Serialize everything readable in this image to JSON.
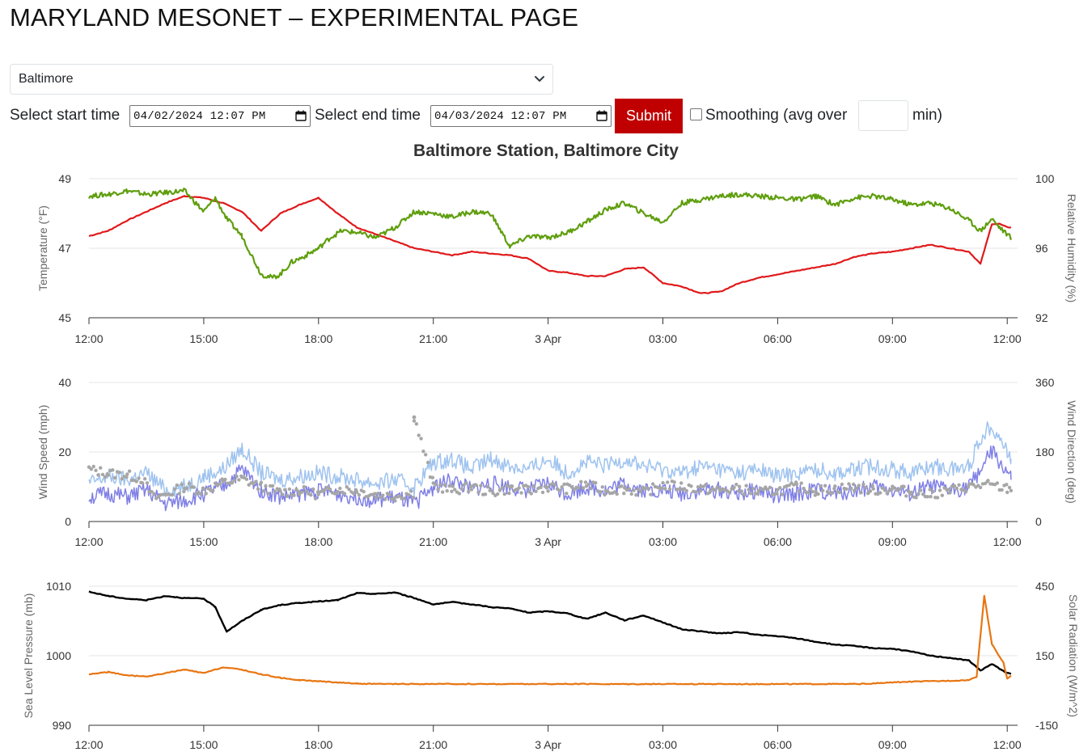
{
  "page": {
    "title": "MARYLAND MESONET – EXPERIMENTAL PAGE"
  },
  "station_select": {
    "selected": "Baltimore"
  },
  "controls": {
    "start_label": "Select start time",
    "start_value": "04/02/2024 12:07 PM",
    "end_label": "Select end time",
    "end_value": "04/03/2024 12:07 PM",
    "submit_label": "Submit",
    "smoothing_label": "Smoothing (avg over",
    "smoothing_value": "",
    "smoothing_unit": "min)"
  },
  "icons": {
    "select_arrow": "chevron-down-icon",
    "calendar": "calendar-icon",
    "checkbox": "checkbox-icon"
  },
  "colors": {
    "temperature": "#e0191b",
    "humidity": "#5f9e0e",
    "wind_speed": "#8080e6",
    "wind_gust": "#9fc3ef",
    "wind_direction": "#a6a6a6",
    "pressure": "#000000",
    "solar": "#e87511",
    "submit": "#c00000"
  },
  "chart_data": [
    {
      "type": "line",
      "title": "Baltimore Station, Baltimore City",
      "x_ticks": [
        "12:00",
        "15:00",
        "18:00",
        "21:00",
        "3 Apr",
        "03:00",
        "06:00",
        "09:00",
        "12:00"
      ],
      "x_range_hours": [
        0,
        24.2
      ],
      "ylabel": "Temperature (°F)",
      "ylabel2": "Relative Humidity (%)",
      "ylim": [
        45,
        49
      ],
      "ylim2": [
        92,
        100
      ],
      "yticks": [
        "45",
        "47",
        "49"
      ],
      "yticks2": [
        "92",
        "96",
        "100"
      ],
      "grid": true,
      "series": [
        {
          "axis": "left",
          "x": [
            0,
            0.5,
            1,
            1.5,
            2,
            2.5,
            3,
            3.5,
            4,
            4.5,
            5,
            5.5,
            6,
            6.5,
            7,
            7.5,
            8,
            8.5,
            9,
            9.5,
            10,
            10.5,
            11,
            11.5,
            12,
            12.5,
            13,
            13.5,
            14,
            14.5,
            15,
            15.5,
            16,
            16.5,
            17,
            17.5,
            18,
            18.5,
            19,
            19.5,
            20,
            20.5,
            21,
            21.5,
            22,
            22.5,
            23,
            23.3,
            23.6,
            23.8,
            24,
            24.1
          ],
          "values": [
            47.35,
            47.5,
            47.8,
            48.05,
            48.3,
            48.5,
            48.45,
            48.3,
            48.05,
            47.5,
            48.0,
            48.25,
            48.45,
            48.0,
            47.6,
            47.4,
            47.2,
            47.0,
            46.9,
            46.8,
            46.9,
            46.85,
            46.8,
            46.7,
            46.35,
            46.3,
            46.2,
            46.2,
            46.4,
            46.45,
            46.0,
            45.9,
            45.7,
            45.75,
            46.0,
            46.15,
            46.25,
            46.35,
            46.45,
            46.55,
            46.75,
            46.85,
            46.9,
            47.0,
            47.1,
            47.0,
            46.9,
            46.55,
            47.7,
            47.7,
            47.6,
            47.6
          ]
        },
        {
          "axis": "right",
          "x": [
            0,
            0.5,
            1,
            1.5,
            2,
            2.5,
            3,
            3.3,
            3.6,
            4,
            4.5,
            4.8,
            5,
            5.3,
            5.6,
            6,
            6.3,
            6.6,
            7,
            7.5,
            8,
            8.5,
            9,
            9.5,
            10,
            10.5,
            11,
            11.5,
            12,
            12.5,
            13,
            13.5,
            14,
            14.5,
            15,
            15.5,
            16,
            16.5,
            17,
            17.5,
            18,
            18.5,
            19,
            19.5,
            20,
            20.5,
            21,
            21.5,
            22,
            22.5,
            23,
            23.3,
            23.6,
            23.8,
            24,
            24.1
          ],
          "values": [
            99.0,
            99.1,
            99.3,
            99.1,
            99.2,
            99.3,
            98.1,
            98.9,
            97.7,
            96.7,
            94.5,
            94.3,
            94.5,
            95.2,
            95.5,
            96.0,
            96.6,
            97.0,
            96.9,
            96.6,
            97.2,
            98.1,
            98.0,
            97.8,
            98.1,
            98.0,
            96.1,
            96.7,
            96.6,
            96.9,
            97.5,
            98.2,
            98.6,
            98.0,
            97.5,
            98.6,
            98.8,
            99.0,
            99.1,
            99.0,
            98.9,
            98.8,
            99.0,
            98.5,
            98.9,
            99.0,
            98.8,
            98.5,
            98.6,
            98.3,
            97.6,
            97.0,
            97.7,
            97.2,
            96.8,
            96.6
          ]
        }
      ]
    },
    {
      "type": "line",
      "x_ticks": [
        "12:00",
        "15:00",
        "18:00",
        "21:00",
        "3 Apr",
        "03:00",
        "06:00",
        "09:00",
        "12:00"
      ],
      "x_range_hours": [
        0,
        24.2
      ],
      "ylabel": "Wind Speed (mph)",
      "ylabel2": "Wind Direction (deg)",
      "ylim": [
        0,
        40
      ],
      "ylim2": [
        0,
        360
      ],
      "yticks": [
        "0",
        "20",
        "40"
      ],
      "yticks2": [
        "0",
        "180",
        "360"
      ],
      "grid": true,
      "series": [
        {
          "axis": "left",
          "type": "area",
          "x": [
            0,
            0.5,
            1,
            1.5,
            2,
            2.5,
            3,
            3.5,
            4,
            4.5,
            5,
            5.5,
            6,
            6.5,
            7,
            7.5,
            8,
            8.5,
            9,
            9.5,
            10,
            10.5,
            11,
            11.5,
            12,
            12.5,
            13,
            13.5,
            14,
            14.5,
            15,
            15.5,
            16,
            16.5,
            17,
            17.5,
            18,
            18.5,
            19,
            19.5,
            20,
            20.5,
            21,
            21.5,
            22,
            22.5,
            23,
            23.3,
            23.6,
            24,
            24.1
          ],
          "values": [
            11,
            13,
            12,
            14,
            9,
            10,
            13,
            15,
            21,
            14,
            12,
            13,
            14,
            13,
            12,
            11,
            12,
            10,
            17,
            18,
            15,
            18,
            16,
            15,
            18,
            14,
            17,
            16,
            18,
            16,
            15,
            14,
            16,
            15,
            14,
            15,
            13,
            14,
            15,
            14,
            15,
            16,
            15,
            14,
            16,
            15,
            16,
            24,
            28,
            20,
            18
          ]
        },
        {
          "axis": "left",
          "x": [
            0,
            0.5,
            1,
            1.5,
            2,
            2.5,
            3,
            3.5,
            4,
            4.5,
            5,
            5.5,
            6,
            6.5,
            7,
            7.5,
            8,
            8.5,
            9,
            9.5,
            10,
            10.5,
            11,
            11.5,
            12,
            12.5,
            13,
            13.5,
            14,
            14.5,
            15,
            15.5,
            16,
            16.5,
            17,
            17.5,
            18,
            18.5,
            19,
            19.5,
            20,
            20.5,
            21,
            21.5,
            22,
            22.5,
            23,
            23.3,
            23.6,
            24,
            24.1
          ],
          "values": [
            7,
            8,
            7,
            9,
            5,
            6,
            8,
            10,
            15,
            9,
            7,
            8,
            9,
            8,
            7,
            6,
            7,
            5,
            10,
            12,
            9,
            11,
            10,
            9,
            11,
            8,
            10,
            9,
            11,
            9,
            9,
            8,
            9,
            9,
            8,
            9,
            7,
            8,
            9,
            8,
            9,
            10,
            9,
            8,
            10,
            9,
            10,
            15,
            20,
            14,
            12
          ]
        },
        {
          "axis": "right",
          "type": "scatter",
          "x": [
            0,
            0.5,
            1,
            1.4,
            1.7,
            2,
            2.5,
            3,
            3.5,
            4,
            4.5,
            5,
            5.5,
            6,
            6.5,
            7,
            7.5,
            8,
            8.5,
            8.5,
            9,
            9.5,
            10,
            10.5,
            11,
            11.5,
            12,
            12.5,
            13,
            13.5,
            14,
            14.5,
            15,
            15.5,
            16,
            16.5,
            17,
            17.5,
            18,
            18.5,
            19,
            19.5,
            20,
            20.5,
            21,
            21.5,
            22,
            22.5,
            23,
            23.5,
            24,
            24.1
          ],
          "values": [
            135,
            125,
            120,
            110,
            60,
            70,
            90,
            80,
            100,
            110,
            90,
            75,
            80,
            70,
            85,
            80,
            70,
            65,
            75,
            270,
            95,
            80,
            90,
            75,
            85,
            80,
            90,
            85,
            95,
            80,
            85,
            75,
            95,
            90,
            85,
            80,
            85,
            75,
            80,
            90,
            80,
            85,
            90,
            80,
            85,
            75,
            70,
            80,
            90,
            95,
            85,
            80
          ]
        }
      ]
    },
    {
      "type": "line",
      "x_ticks": [
        "12:00",
        "15:00",
        "18:00",
        "21:00",
        "3 Apr",
        "03:00",
        "06:00",
        "09:00",
        "12:00"
      ],
      "x_range_hours": [
        0,
        24.2
      ],
      "ylabel": "Sea Level Pressure (mb)",
      "ylabel2": "Solar Radiation (W/m^2)",
      "ylim": [
        990,
        1010
      ],
      "ylim2": [
        -150,
        450
      ],
      "yticks": [
        "990",
        "1000",
        "1010"
      ],
      "yticks2": [
        "-150",
        "150",
        "450"
      ],
      "grid": true,
      "series": [
        {
          "axis": "left",
          "x": [
            0,
            0.5,
            1,
            1.5,
            2,
            2.5,
            3,
            3.3,
            3.6,
            4,
            4.5,
            5,
            5.5,
            6,
            6.5,
            7,
            7.5,
            8,
            8.5,
            9,
            9.5,
            10,
            10.5,
            11,
            11.5,
            12,
            12.5,
            13,
            13.5,
            14,
            14.5,
            15,
            15.5,
            16,
            16.5,
            17,
            17.5,
            18,
            18.5,
            19,
            19.5,
            20,
            20.5,
            21,
            21.5,
            22,
            22.5,
            23,
            23.3,
            23.6,
            24,
            24.1
          ],
          "values": [
            1009.2,
            1008.6,
            1008.2,
            1008.0,
            1008.6,
            1008.3,
            1008.2,
            1007.0,
            1003.5,
            1005.0,
            1006.6,
            1007.3,
            1007.6,
            1007.8,
            1008.0,
            1009.0,
            1008.9,
            1009.1,
            1008.3,
            1007.4,
            1007.7,
            1007.4,
            1007.0,
            1006.8,
            1006.2,
            1006.4,
            1006.1,
            1005.3,
            1006.2,
            1005.1,
            1005.8,
            1004.8,
            1003.8,
            1003.5,
            1003.2,
            1003.4,
            1003.0,
            1002.8,
            1002.5,
            1002.0,
            1001.6,
            1001.4,
            1001.1,
            1001.0,
            1000.6,
            1000.0,
            999.7,
            999.3,
            997.9,
            998.8,
            997.5,
            997.4
          ]
        },
        {
          "axis": "right",
          "x": [
            0,
            0.5,
            1,
            1.5,
            2,
            2.5,
            3,
            3.5,
            4,
            4.5,
            5,
            5.5,
            6,
            6.5,
            7,
            7.5,
            8,
            8.5,
            9,
            9.5,
            10,
            10.5,
            11,
            11.5,
            12,
            12.5,
            13,
            13.5,
            14,
            14.5,
            15,
            15.5,
            16,
            16.5,
            17,
            17.5,
            18,
            18.5,
            19,
            19.5,
            20,
            20.5,
            21,
            21.5,
            22,
            22.5,
            23,
            23.2,
            23.4,
            23.6,
            23.9,
            24,
            24.1
          ],
          "values": [
            70,
            80,
            65,
            60,
            75,
            90,
            75,
            100,
            90,
            70,
            55,
            45,
            40,
            35,
            30,
            28,
            28,
            28,
            28,
            28,
            28,
            28,
            28,
            28,
            28,
            28,
            28,
            28,
            28,
            28,
            28,
            28,
            28,
            28,
            28,
            28,
            28,
            28,
            28,
            28,
            28,
            30,
            35,
            38,
            40,
            42,
            45,
            60,
            410,
            200,
            120,
            50,
            65
          ]
        }
      ]
    }
  ]
}
